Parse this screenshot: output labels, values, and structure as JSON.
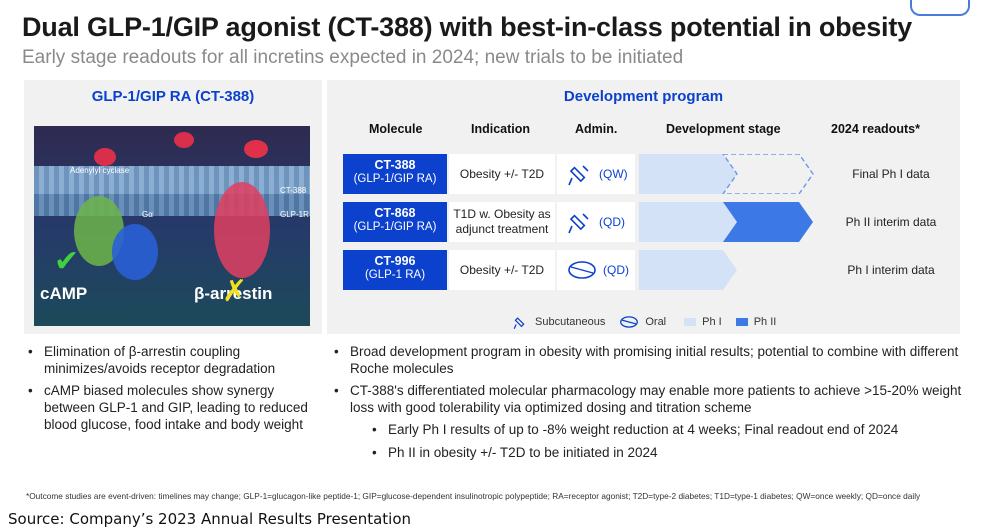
{
  "header": {
    "title": "Dual GLP-1/GIP agonist (CT-388) with best-in-class potential in obesity",
    "subtitle": "Early stage readouts for all incretins expected in 2024; new trials to be initiated"
  },
  "left_panel": {
    "heading": "GLP-1/GIP RA (CT-388)",
    "image_labels": {
      "adenylyl": "Adenylyl cyclase",
      "ct388": "CT-388",
      "glp1r": "GLP-1R",
      "ga": "Gα",
      "camp": "cAMP",
      "barrestin": "β-arrestin"
    },
    "bullets": [
      "Elimination of β-arrestin coupling minimizes/avoids receptor degradation",
      "cAMP biased molecules show synergy between GLP-1 and GIP, leading to reduced blood glucose, food intake and body weight"
    ]
  },
  "right_panel": {
    "heading": "Development program",
    "columns": [
      "Molecule",
      "Indication",
      "Admin.",
      "Development stage",
      "2024 readouts*"
    ],
    "rows": [
      {
        "name": "CT-388",
        "sub": "(GLP-1/GIP RA)",
        "indication": "Obesity +/- T2D",
        "admin_icon": "syringe-icon",
        "admin": "(QW)",
        "stage": "Ph I",
        "readout": "Final Ph I data"
      },
      {
        "name": "CT-868",
        "sub": "(GLP-1/GIP RA)",
        "indication": "T1D w. Obesity as adjunct treatment",
        "admin_icon": "syringe-icon",
        "admin": "(QD)",
        "stage": "Ph II",
        "readout": "Ph II interim data"
      },
      {
        "name": "CT-996",
        "sub": "(GLP-1 RA)",
        "indication": "Obesity +/- T2D",
        "admin_icon": "pill-icon",
        "admin": "(QD)",
        "stage": "Ph I",
        "readout": "Ph I interim data"
      }
    ],
    "legend": {
      "subcutaneous": "Subcutaneous",
      "oral": "Oral",
      "ph1": "Ph I",
      "ph2": "Ph II"
    },
    "bullets": [
      "Broad development program in obesity with promising initial results; potential to combine with different Roche molecules",
      "CT-388's differentiated molecular pharmacology may enable more patients to achieve >15-20% weight loss with good tolerability via optimized dosing and titration scheme"
    ],
    "sub_bullets": [
      "Early Ph I results of up to -8% weight reduction at 4 weeks; Final readout end of 2024",
      "Ph II in obesity +/- T2D to be initiated in 2024"
    ]
  },
  "footnote": "*Outcome studies are event-driven: timelines may change; GLP-1=glucagon-like peptide-1; GIP=glucose-dependent insulinotropic polypeptide; RA=receptor agonist; T2D=type-2 diabetes; T1D=type-1 diabetes; QW=once weekly; QD=once daily",
  "source": "Source: Company’s 2023 Annual Results Presentation",
  "colors": {
    "brand_blue": "#0b41cd",
    "ph1": "#d4e2f7",
    "ph2": "#3c78e6"
  }
}
